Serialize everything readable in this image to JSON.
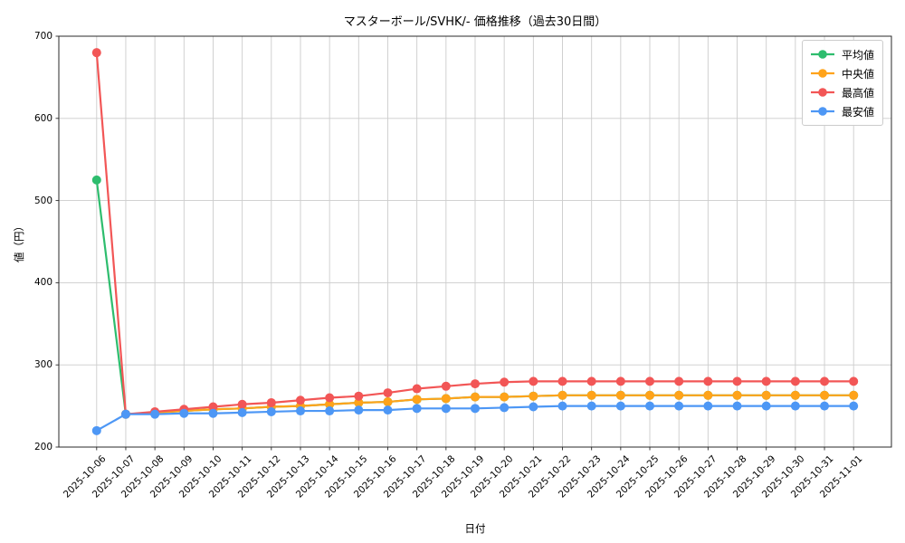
{
  "chart_data": {
    "type": "line",
    "title": "マスターボール/SVHK/- 価格推移（過去30日間）",
    "xlabel": "日付",
    "ylabel": "値（円）",
    "ylim": [
      200,
      700
    ],
    "yticks": [
      200,
      300,
      400,
      500,
      600,
      700
    ],
    "grid": true,
    "legend_position": "upper right",
    "x": [
      "2025-10-06",
      "2025-10-07",
      "2025-10-08",
      "2025-10-09",
      "2025-10-10",
      "2025-10-11",
      "2025-10-12",
      "2025-10-13",
      "2025-10-14",
      "2025-10-15",
      "2025-10-16",
      "2025-10-17",
      "2025-10-18",
      "2025-10-19",
      "2025-10-20",
      "2025-10-21",
      "2025-10-22",
      "2025-10-23",
      "2025-10-24",
      "2025-10-25",
      "2025-10-26",
      "2025-10-27",
      "2025-10-28",
      "2025-10-29",
      "2025-10-30",
      "2025-10-31",
      "2025-11-01"
    ],
    "series": [
      {
        "name": "平均値",
        "key": "average",
        "color": "#2ebd6e",
        "values": [
          525,
          240,
          242,
          244,
          246,
          247,
          249,
          250,
          252,
          254,
          255,
          258,
          259,
          261,
          261,
          262,
          263,
          263,
          263,
          263,
          263,
          263,
          263,
          263,
          263,
          263,
          263
        ]
      },
      {
        "name": "中央値",
        "key": "median",
        "color": "#ffa31a",
        "values": [
          null,
          240,
          242,
          244,
          246,
          247,
          249,
          250,
          252,
          254,
          255,
          258,
          259,
          261,
          261,
          262,
          263,
          263,
          263,
          263,
          263,
          263,
          263,
          263,
          263,
          263,
          263
        ]
      },
      {
        "name": "最高値",
        "key": "max",
        "color": "#f25656",
        "values": [
          680,
          240,
          243,
          246,
          249,
          252,
          254,
          257,
          260,
          262,
          266,
          271,
          274,
          277,
          279,
          280,
          280,
          280,
          280,
          280,
          280,
          280,
          280,
          280,
          280,
          280,
          280
        ]
      },
      {
        "name": "最安値",
        "key": "min",
        "color": "#4d97f5",
        "values": [
          220,
          240,
          240,
          241,
          241,
          242,
          243,
          244,
          244,
          245,
          245,
          247,
          247,
          247,
          248,
          249,
          250,
          250,
          250,
          250,
          250,
          250,
          250,
          250,
          250,
          250,
          250
        ]
      }
    ],
    "style": {
      "grid_color": "#cccccc",
      "spine_color": "#2a2a2a",
      "background": "#ffffff"
    }
  }
}
